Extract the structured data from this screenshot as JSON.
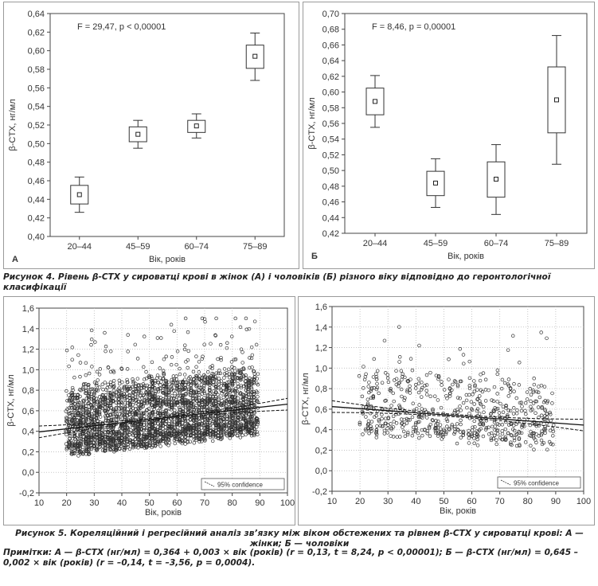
{
  "figure4": {
    "caption": "Рисунок 4. Рівень β-CTX у сироватці крові в жінок (А) і чоловіків (Б) різного віку відповідно до геронтологічної класифікації"
  },
  "figure5": {
    "caption": "Рисунок 5. Кореляційний і регресійний аналіз зв’язку між віком обстежених та рівнем β-CTX у сироватці крові: А — жінки; Б — чоловіки"
  },
  "note": {
    "text": "Примітки: А — β-CTX (нг/мл) = 0,364 + 0,003 × вік (років) (r = 0,13, t = 8,24, p < 0,00001); Б — β-CTX (нг/мл) = 0,645 – 0,002 × вік (років) (r = –0,14, t = –3,56, p = 0,0004)."
  },
  "chart_data": [
    {
      "type": "box",
      "panel_letter": "А",
      "annotation": "F = 29,47, p < 0,00001",
      "xlabel": "Вік, років",
      "ylabel": "β-CTX, нг/мл",
      "ylim": [
        0.4,
        0.64
      ],
      "yticks": [
        "0,40",
        "0,42",
        "0,44",
        "0,46",
        "0,48",
        "0,50",
        "0,52",
        "0,54",
        "0,56",
        "0,58",
        "0,60",
        "0,62",
        "0,64"
      ],
      "categories": [
        "20–44",
        "45–59",
        "60–74",
        "75–89"
      ],
      "mean": [
        0.445,
        0.51,
        0.519,
        0.594
      ],
      "box_low": [
        0.435,
        0.502,
        0.512,
        0.581
      ],
      "box_high": [
        0.455,
        0.518,
        0.525,
        0.606
      ],
      "whisker_low": [
        0.426,
        0.495,
        0.506,
        0.568
      ],
      "whisker_high": [
        0.464,
        0.525,
        0.532,
        0.619
      ]
    },
    {
      "type": "box",
      "panel_letter": "Б",
      "annotation": "F = 8,46, p = 0,00001",
      "xlabel": "Вік, років",
      "ylabel": "β-CTX, нг/мл",
      "ylim": [
        0.42,
        0.7
      ],
      "yticks": [
        "0,42",
        "0,44",
        "0,46",
        "0,48",
        "0,50",
        "0,52",
        "0,54",
        "0,56",
        "0,58",
        "0,60",
        "0,62",
        "0,64",
        "0,66",
        "0,68",
        "0,70"
      ],
      "categories": [
        "20–44",
        "45–59",
        "60–74",
        "75–89"
      ],
      "mean": [
        0.588,
        0.484,
        0.489,
        0.59
      ],
      "box_low": [
        0.571,
        0.468,
        0.466,
        0.548
      ],
      "box_high": [
        0.605,
        0.499,
        0.511,
        0.632
      ],
      "whisker_low": [
        0.555,
        0.453,
        0.444,
        0.508
      ],
      "whisker_high": [
        0.621,
        0.515,
        0.533,
        0.672
      ]
    },
    {
      "type": "scatter",
      "xlabel": "Вік, років",
      "ylabel": "β-CTX, нг/мл",
      "xlim": [
        10,
        100
      ],
      "ylim": [
        -0.2,
        1.6
      ],
      "xticks": [
        "10",
        "20",
        "30",
        "40",
        "50",
        "60",
        "70",
        "80",
        "90",
        "100"
      ],
      "yticks": [
        "-0,2",
        "0,0",
        "0,2",
        "0,4",
        "0,6",
        "0,8",
        "1,0",
        "1,2",
        "1,4",
        "1,6"
      ],
      "legend": "95% confidence",
      "n_points": 3000,
      "x_range": [
        20,
        89
      ],
      "regression": {
        "intercept": 0.364,
        "slope": 0.003
      },
      "seed": 7
    },
    {
      "type": "scatter",
      "xlabel": "Вік, років",
      "ylabel": "β-CTX, нг/мл",
      "xlim": [
        10,
        100
      ],
      "ylim": [
        -0.2,
        1.6
      ],
      "xticks": [
        "10",
        "20",
        "30",
        "40",
        "50",
        "60",
        "70",
        "80",
        "90",
        "100"
      ],
      "yticks": [
        "-0,2",
        "0,0",
        "0,2",
        "0,4",
        "0,6",
        "0,8",
        "1,0",
        "1,2",
        "1,4",
        "1,6"
      ],
      "legend": "95% confidence",
      "n_points": 620,
      "x_range": [
        20,
        89
      ],
      "regression": {
        "intercept": 0.645,
        "slope": -0.002
      },
      "seed": 13
    }
  ]
}
